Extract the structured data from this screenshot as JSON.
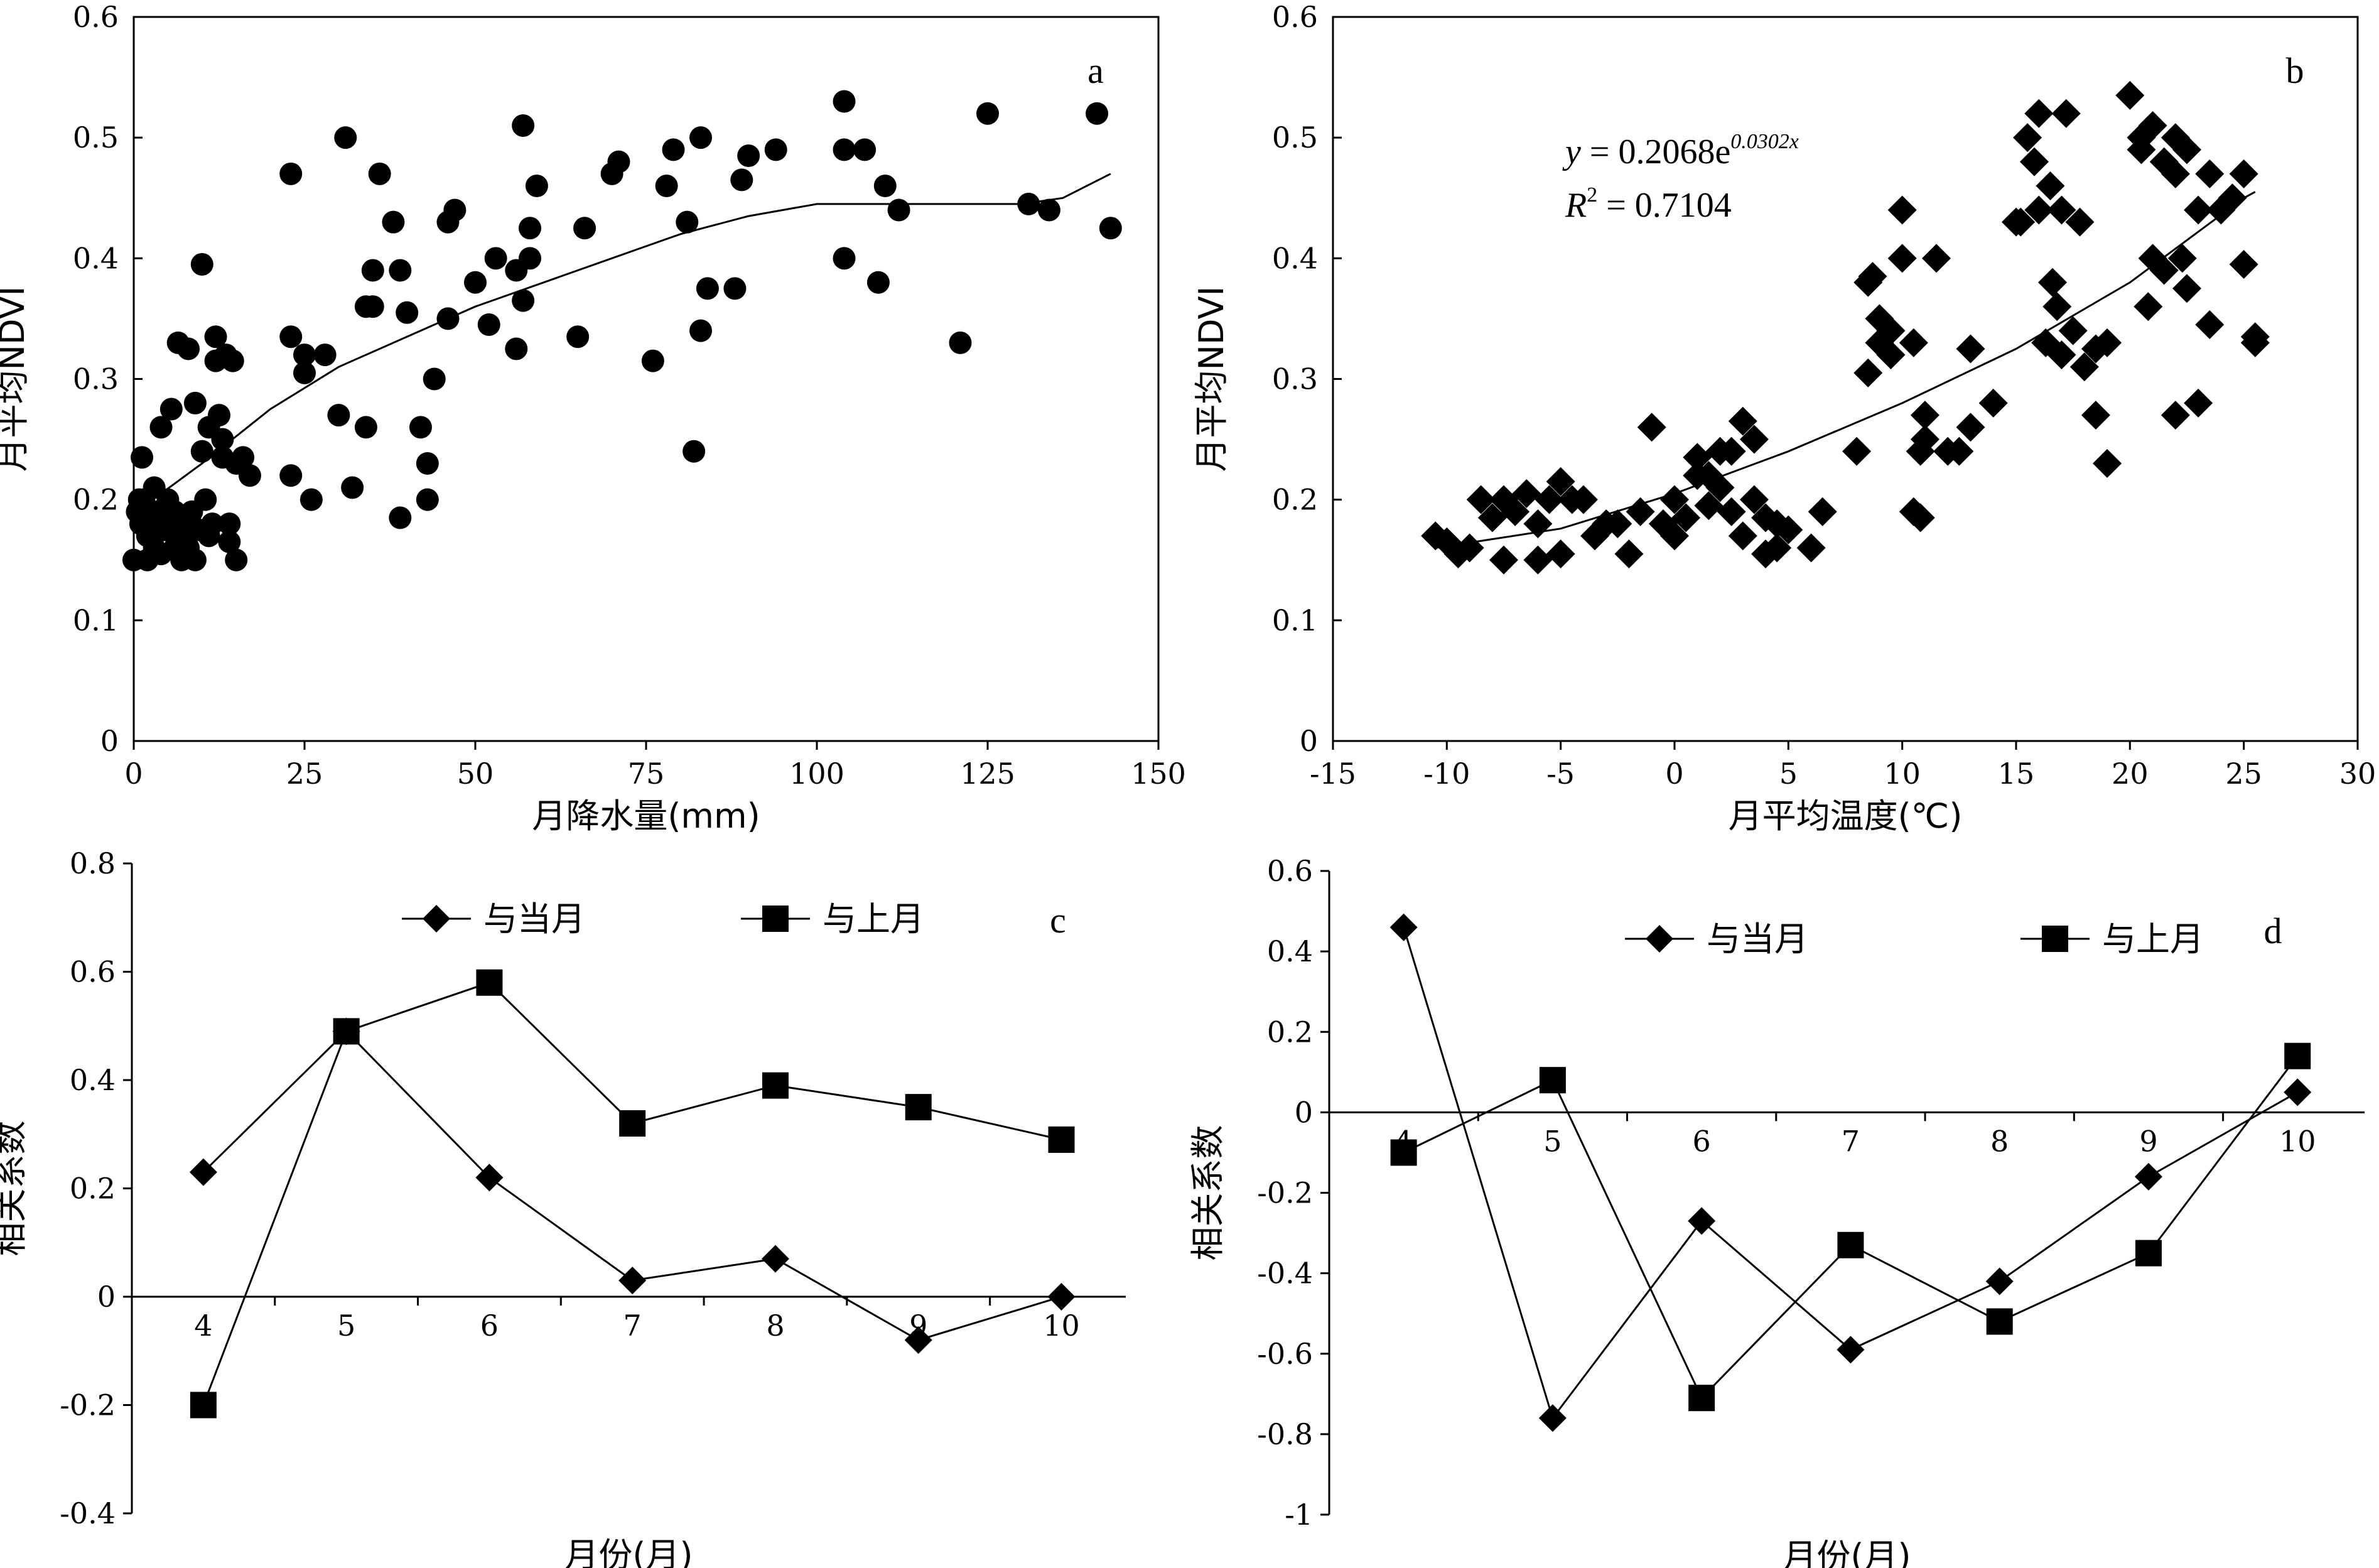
{
  "chart_data": [
    {
      "panel_label": "a",
      "type": "scatter",
      "xlabel": "月降水量(mm)",
      "ylabel": "月平均NDVI",
      "xlim": [
        0,
        150
      ],
      "ylim": [
        0,
        0.6
      ],
      "xticks": [
        0,
        25,
        50,
        75,
        100,
        125,
        150
      ],
      "yticks": [
        0,
        0.1,
        0.2,
        0.3,
        0.4,
        0.5,
        0.6
      ],
      "marker": "circle",
      "points": [
        [
          0,
          0.15
        ],
        [
          0.5,
          0.19
        ],
        [
          0.8,
          0.2
        ],
        [
          1,
          0.18
        ],
        [
          1.2,
          0.235
        ],
        [
          1.5,
          0.2
        ],
        [
          2,
          0.15
        ],
        [
          2,
          0.17
        ],
        [
          2.5,
          0.185
        ],
        [
          3,
          0.21
        ],
        [
          3,
          0.16
        ],
        [
          3.5,
          0.19
        ],
        [
          4,
          0.26
        ],
        [
          4,
          0.155
        ],
        [
          4.5,
          0.175
        ],
        [
          5,
          0.2
        ],
        [
          5,
          0.18
        ],
        [
          5.5,
          0.275
        ],
        [
          6,
          0.16
        ],
        [
          6,
          0.19
        ],
        [
          6.5,
          0.33
        ],
        [
          7,
          0.17
        ],
        [
          7,
          0.15
        ],
        [
          7.5,
          0.185
        ],
        [
          8,
          0.325
        ],
        [
          8,
          0.16
        ],
        [
          8.5,
          0.19
        ],
        [
          9,
          0.28
        ],
        [
          9,
          0.15
        ],
        [
          9.5,
          0.175
        ],
        [
          10,
          0.395
        ],
        [
          10,
          0.24
        ],
        [
          10.5,
          0.2
        ],
        [
          11,
          0.26
        ],
        [
          11,
          0.17
        ],
        [
          11.5,
          0.18
        ],
        [
          12,
          0.335
        ],
        [
          12,
          0.315
        ],
        [
          12.5,
          0.27
        ],
        [
          13,
          0.25
        ],
        [
          13,
          0.235
        ],
        [
          13.5,
          0.32
        ],
        [
          14,
          0.18
        ],
        [
          14,
          0.165
        ],
        [
          14.5,
          0.315
        ],
        [
          15,
          0.23
        ],
        [
          15,
          0.15
        ],
        [
          16,
          0.235
        ],
        [
          17,
          0.22
        ],
        [
          23,
          0.47
        ],
        [
          23,
          0.335
        ],
        [
          23,
          0.22
        ],
        [
          25,
          0.305
        ],
        [
          25,
          0.32
        ],
        [
          26,
          0.2
        ],
        [
          28,
          0.32
        ],
        [
          30,
          0.27
        ],
        [
          31,
          0.5
        ],
        [
          32,
          0.21
        ],
        [
          34,
          0.36
        ],
        [
          34,
          0.26
        ],
        [
          35,
          0.39
        ],
        [
          35,
          0.36
        ],
        [
          36,
          0.47
        ],
        [
          38,
          0.43
        ],
        [
          39,
          0.39
        ],
        [
          39,
          0.185
        ],
        [
          40,
          0.355
        ],
        [
          42,
          0.26
        ],
        [
          43,
          0.23
        ],
        [
          43,
          0.2
        ],
        [
          44,
          0.3
        ],
        [
          46,
          0.43
        ],
        [
          46,
          0.35
        ],
        [
          47,
          0.44
        ],
        [
          50,
          0.38
        ],
        [
          52,
          0.345
        ],
        [
          53,
          0.4
        ],
        [
          56,
          0.39
        ],
        [
          56,
          0.325
        ],
        [
          57,
          0.51
        ],
        [
          57,
          0.365
        ],
        [
          58,
          0.4
        ],
        [
          58,
          0.425
        ],
        [
          59,
          0.46
        ],
        [
          65,
          0.335
        ],
        [
          66,
          0.425
        ],
        [
          70,
          0.47
        ],
        [
          71,
          0.48
        ],
        [
          76,
          0.315
        ],
        [
          78,
          0.46
        ],
        [
          79,
          0.49
        ],
        [
          81,
          0.43
        ],
        [
          82,
          0.24
        ],
        [
          83,
          0.5
        ],
        [
          83,
          0.34
        ],
        [
          84,
          0.375
        ],
        [
          88,
          0.375
        ],
        [
          89,
          0.465
        ],
        [
          90,
          0.485
        ],
        [
          94,
          0.49
        ],
        [
          104,
          0.53
        ],
        [
          104,
          0.49
        ],
        [
          104,
          0.4
        ],
        [
          107,
          0.49
        ],
        [
          109,
          0.38
        ],
        [
          110,
          0.46
        ],
        [
          112,
          0.44
        ],
        [
          121,
          0.33
        ],
        [
          125,
          0.52
        ],
        [
          131,
          0.445
        ],
        [
          134,
          0.44
        ],
        [
          141,
          0.52
        ],
        [
          143,
          0.425
        ]
      ],
      "fit_curve": [
        [
          4,
          0.205
        ],
        [
          10,
          0.23
        ],
        [
          20,
          0.275
        ],
        [
          30,
          0.31
        ],
        [
          40,
          0.335
        ],
        [
          50,
          0.36
        ],
        [
          60,
          0.38
        ],
        [
          70,
          0.4
        ],
        [
          80,
          0.42
        ],
        [
          90,
          0.435
        ],
        [
          100,
          0.445
        ],
        [
          110,
          0.445
        ],
        [
          120,
          0.445
        ],
        [
          130,
          0.445
        ],
        [
          136,
          0.45
        ],
        [
          143,
          0.47
        ]
      ]
    },
    {
      "panel_label": "b",
      "type": "scatter",
      "xlabel": "月平均温度(℃)",
      "ylabel": "月平均NDVI",
      "xlim": [
        -15,
        30
      ],
      "ylim": [
        0,
        0.6
      ],
      "xticks": [
        -15,
        -10,
        -5,
        0,
        5,
        10,
        15,
        20,
        25,
        30
      ],
      "yticks": [
        0,
        0.1,
        0.2,
        0.3,
        0.4,
        0.5,
        0.6
      ],
      "marker": "diamond",
      "equation": {
        "y_var": "y",
        "eq_text": " = 0.2068e",
        "exponent": "0.0302x",
        "r2_var": "R",
        "r2_sup": "2",
        "r2_text": " = 0.7104"
      },
      "points": [
        [
          -10.5,
          0.17
        ],
        [
          -10,
          0.165
        ],
        [
          -9.5,
          0.155
        ],
        [
          -9,
          0.16
        ],
        [
          -8.5,
          0.2
        ],
        [
          -8,
          0.185
        ],
        [
          -7.5,
          0.15
        ],
        [
          -7.5,
          0.2
        ],
        [
          -7,
          0.19
        ],
        [
          -6.5,
          0.205
        ],
        [
          -6,
          0.15
        ],
        [
          -6,
          0.18
        ],
        [
          -5.5,
          0.2
        ],
        [
          -5,
          0.215
        ],
        [
          -5,
          0.155
        ],
        [
          -4.5,
          0.2
        ],
        [
          -4,
          0.2
        ],
        [
          -3.5,
          0.17
        ],
        [
          -3,
          0.18
        ],
        [
          -2.5,
          0.18
        ],
        [
          -2,
          0.155
        ],
        [
          -1.5,
          0.19
        ],
        [
          -1,
          0.26
        ],
        [
          -0.5,
          0.18
        ],
        [
          0,
          0.2
        ],
        [
          0,
          0.17
        ],
        [
          0.5,
          0.185
        ],
        [
          1,
          0.22
        ],
        [
          1,
          0.235
        ],
        [
          1.5,
          0.195
        ],
        [
          1.5,
          0.22
        ],
        [
          2,
          0.21
        ],
        [
          2,
          0.24
        ],
        [
          2.5,
          0.19
        ],
        [
          2.5,
          0.24
        ],
        [
          3,
          0.17
        ],
        [
          3,
          0.265
        ],
        [
          3.5,
          0.2
        ],
        [
          3.5,
          0.25
        ],
        [
          4,
          0.185
        ],
        [
          4,
          0.155
        ],
        [
          4.5,
          0.16
        ],
        [
          4.5,
          0.18
        ],
        [
          5,
          0.175
        ],
        [
          6,
          0.16
        ],
        [
          6.5,
          0.19
        ],
        [
          8,
          0.24
        ],
        [
          8.5,
          0.38
        ],
        [
          8.5,
          0.305
        ],
        [
          8.7,
          0.385
        ],
        [
          9,
          0.35
        ],
        [
          9,
          0.33
        ],
        [
          9.5,
          0.34
        ],
        [
          9.5,
          0.32
        ],
        [
          10,
          0.44
        ],
        [
          10,
          0.4
        ],
        [
          10.5,
          0.33
        ],
        [
          10.5,
          0.19
        ],
        [
          10.8,
          0.185
        ],
        [
          10.8,
          0.24
        ],
        [
          11,
          0.27
        ],
        [
          11,
          0.25
        ],
        [
          11.5,
          0.4
        ],
        [
          12,
          0.24
        ],
        [
          12.5,
          0.24
        ],
        [
          13,
          0.26
        ],
        [
          13,
          0.325
        ],
        [
          14,
          0.28
        ],
        [
          15,
          0.43
        ],
        [
          15.2,
          0.43
        ],
        [
          15.5,
          0.5
        ],
        [
          15.8,
          0.48
        ],
        [
          16,
          0.52
        ],
        [
          16,
          0.44
        ],
        [
          16.3,
          0.33
        ],
        [
          16.5,
          0.46
        ],
        [
          16.6,
          0.38
        ],
        [
          16.8,
          0.36
        ],
        [
          17,
          0.32
        ],
        [
          17,
          0.44
        ],
        [
          17.2,
          0.52
        ],
        [
          17.5,
          0.34
        ],
        [
          17.8,
          0.43
        ],
        [
          18,
          0.31
        ],
        [
          18.5,
          0.325
        ],
        [
          18.5,
          0.27
        ],
        [
          19,
          0.33
        ],
        [
          19,
          0.23
        ],
        [
          20,
          0.535
        ],
        [
          20.5,
          0.5
        ],
        [
          20.5,
          0.49
        ],
        [
          20.8,
          0.36
        ],
        [
          21,
          0.4
        ],
        [
          21,
          0.51
        ],
        [
          21.5,
          0.48
        ],
        [
          21.5,
          0.39
        ],
        [
          22,
          0.5
        ],
        [
          22,
          0.47
        ],
        [
          22,
          0.27
        ],
        [
          22.3,
          0.4
        ],
        [
          22.5,
          0.49
        ],
        [
          22.5,
          0.375
        ],
        [
          23,
          0.44
        ],
        [
          23,
          0.28
        ],
        [
          23.5,
          0.47
        ],
        [
          23.5,
          0.345
        ],
        [
          24,
          0.44
        ],
        [
          24.5,
          0.45
        ],
        [
          25,
          0.47
        ],
        [
          25,
          0.395
        ],
        [
          25.5,
          0.33
        ],
        [
          25.5,
          0.335
        ]
      ],
      "fit_curve": [
        [
          -10.5,
          0.16
        ],
        [
          -5,
          0.176
        ],
        [
          0,
          0.205
        ],
        [
          5,
          0.24
        ],
        [
          10,
          0.28
        ],
        [
          15,
          0.325
        ],
        [
          20,
          0.38
        ],
        [
          25,
          0.45
        ],
        [
          25.5,
          0.455
        ]
      ]
    },
    {
      "panel_label": "c",
      "type": "line",
      "xlabel": "月份(月)",
      "ylabel": "相关系数",
      "categories": [
        "4",
        "5",
        "6",
        "7",
        "8",
        "9",
        "10"
      ],
      "ylim": [
        -0.4,
        0.8
      ],
      "yticks": [
        -0.4,
        -0.2,
        0,
        0.2,
        0.4,
        0.6,
        0.8
      ],
      "series": [
        {
          "name": "与当月",
          "marker": "diamond",
          "values": [
            0.23,
            0.49,
            0.22,
            0.03,
            0.07,
            -0.08,
            0.0
          ]
        },
        {
          "name": "与上月",
          "marker": "square",
          "values": [
            -0.2,
            0.49,
            0.58,
            0.32,
            0.39,
            0.35,
            0.29
          ]
        }
      ]
    },
    {
      "panel_label": "d",
      "type": "line",
      "xlabel": "月份(月)",
      "ylabel": "相关系数",
      "categories": [
        "4",
        "5",
        "6",
        "7",
        "8",
        "9",
        "10"
      ],
      "ylim": [
        -1,
        0.6
      ],
      "yticks": [
        -1,
        -0.8,
        -0.6,
        -0.4,
        -0.2,
        0,
        0.2,
        0.4,
        0.6
      ],
      "series": [
        {
          "name": "与当月",
          "marker": "diamond",
          "values": [
            0.46,
            -0.76,
            -0.27,
            -0.59,
            -0.42,
            -0.16,
            0.05
          ]
        },
        {
          "name": "与上月",
          "marker": "square",
          "values": [
            -0.1,
            0.08,
            -0.71,
            -0.33,
            -0.52,
            -0.35,
            0.14
          ]
        }
      ]
    }
  ]
}
